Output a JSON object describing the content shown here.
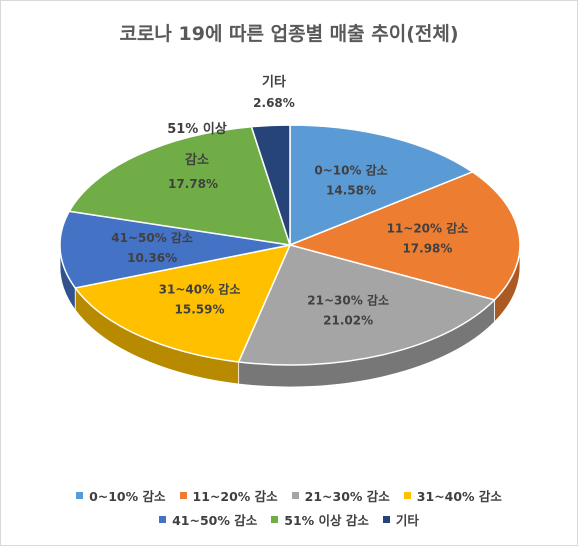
{
  "chart_data": {
    "type": "pie",
    "title": "코로나 19에 따른 업종별 매출 추이(전체)",
    "categories": [
      "0~10% 감소",
      "11~20% 감소",
      "21~30% 감소",
      "31~40% 감소",
      "41~50% 감소",
      "51% 이상 감소",
      "기타"
    ],
    "values": [
      14.58,
      17.98,
      21.02,
      15.59,
      10.36,
      17.78,
      2.68
    ],
    "value_labels": [
      "14.58%",
      "17.98%",
      "21.02%",
      "15.59%",
      "10.36%",
      "17.78%",
      "2.68%"
    ],
    "colors": [
      "#5b9bd5",
      "#ed7d31",
      "#a5a5a5",
      "#ffc000",
      "#4472c4",
      "#70ad47",
      "#264478"
    ],
    "legend_placement": "bottom",
    "style": "3d"
  }
}
